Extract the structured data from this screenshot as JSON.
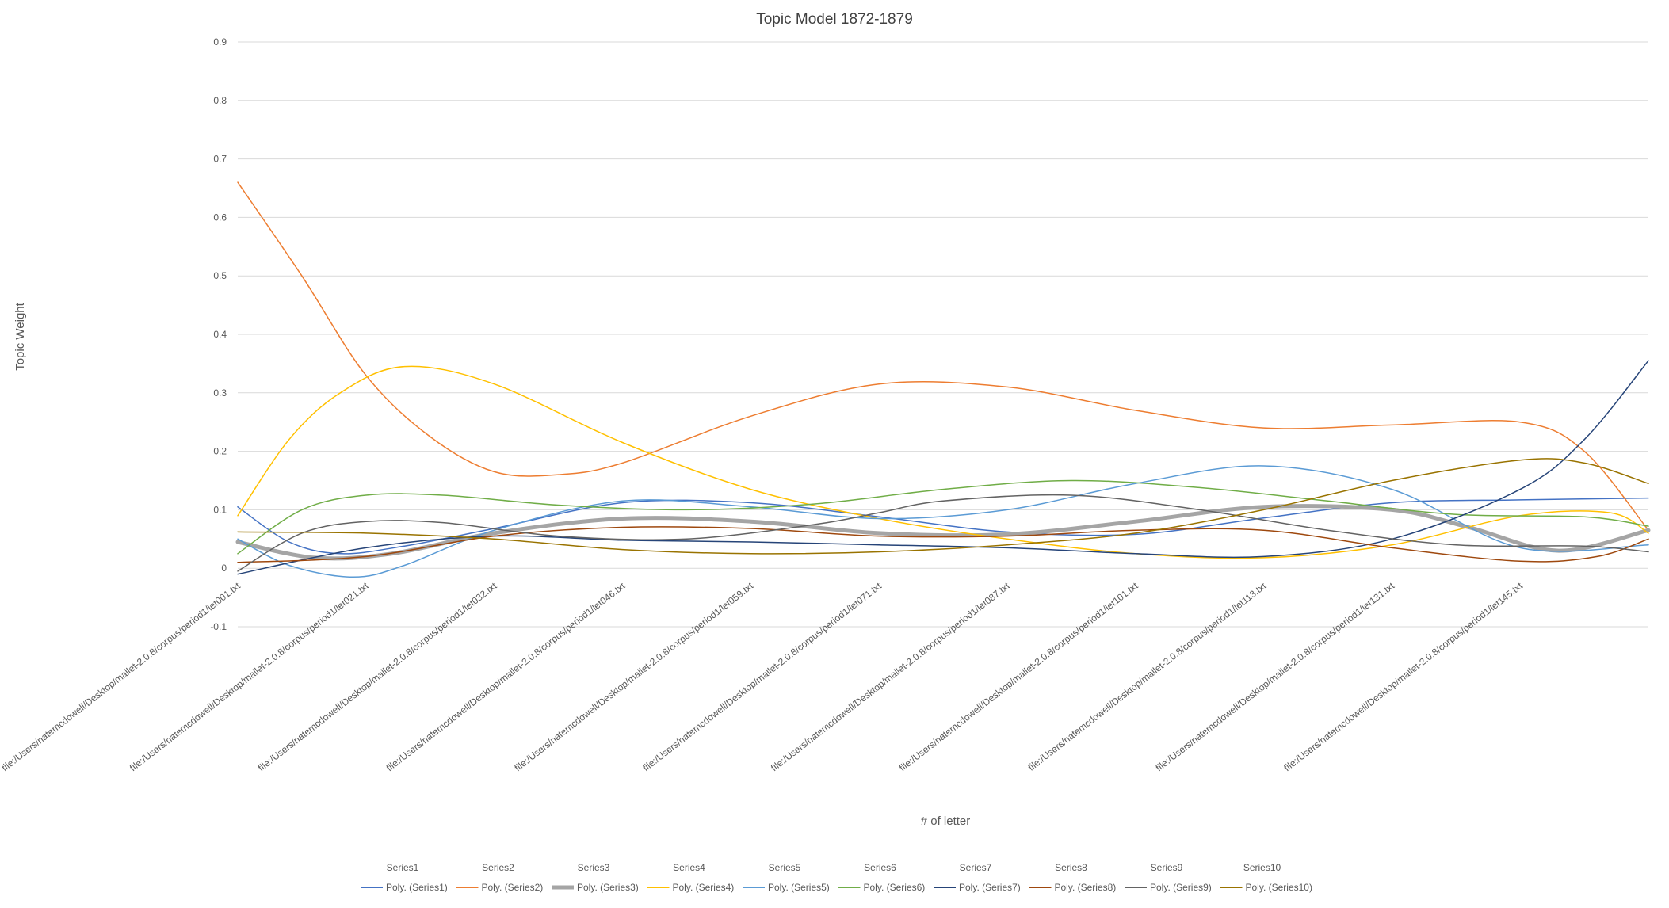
{
  "chart_data": {
    "type": "line",
    "title": "Topic Model 1872-1879",
    "xlabel": "# of letter",
    "ylabel": "Topic Weight",
    "ylim": [
      -0.1,
      0.9
    ],
    "yticks": [
      "0.9",
      "0.8",
      "0.7",
      "0.6",
      "0.5",
      "0.4",
      "0.3",
      "0.2",
      "0.1",
      "0",
      "-0.1"
    ],
    "grid": true,
    "legend_position": "bottom",
    "x_labels": [
      "file:/Users/natemcdowell/Desktop/mallet-2.0.8/corpus/period1/let001.txt",
      "file:/Users/natemcdowell/Desktop/mallet-2.0.8/corpus/period1/let021.txt",
      "file:/Users/natemcdowell/Desktop/mallet-2.0.8/corpus/period1/let032.txt",
      "file:/Users/natemcdowell/Desktop/mallet-2.0.8/corpus/period1/let046.txt",
      "file:/Users/natemcdowell/Desktop/mallet-2.0.8/corpus/period1/let059.txt",
      "file:/Users/natemcdowell/Desktop/mallet-2.0.8/corpus/period1/let071.txt",
      "file:/Users/natemcdowell/Desktop/mallet-2.0.8/corpus/period1/let087.txt",
      "file:/Users/natemcdowell/Desktop/mallet-2.0.8/corpus/period1/let101.txt",
      "file:/Users/natemcdowell/Desktop/mallet-2.0.8/corpus/period1/let113.txt",
      "file:/Users/natemcdowell/Desktop/mallet-2.0.8/corpus/period1/let131.txt",
      "file:/Users/natemcdowell/Desktop/mallet-2.0.8/corpus/period1/let145.txt"
    ],
    "x_range": [
      0,
      11
    ],
    "legend_series": [
      "Series1",
      "Series2",
      "Series3",
      "Series4",
      "Series5",
      "Series6",
      "Series7",
      "Series8",
      "Series9",
      "Series10"
    ],
    "trendlines": [
      {
        "name": "Poly. (Series1)",
        "color": "#4472C4",
        "width": 1.5,
        "x": [
          0,
          0.4,
          0.8,
          1.3,
          2,
          3,
          4,
          5,
          6,
          7,
          8,
          9,
          10,
          11
        ],
        "y": [
          0.105,
          0.045,
          0.025,
          0.038,
          0.068,
          0.112,
          0.112,
          0.088,
          0.062,
          0.058,
          0.086,
          0.112,
          0.117,
          0.12
        ]
      },
      {
        "name": "Poly. (Series2)",
        "color": "#ED7D31",
        "width": 1.5,
        "x": [
          0,
          0.5,
          1,
          1.5,
          2,
          2.5,
          3,
          4,
          5,
          6,
          7,
          8,
          9,
          10,
          10.5,
          11
        ],
        "y": [
          0.66,
          0.5,
          0.33,
          0.225,
          0.165,
          0.16,
          0.18,
          0.26,
          0.315,
          0.31,
          0.27,
          0.24,
          0.245,
          0.25,
          0.2,
          0.065
        ]
      },
      {
        "name": "Poly. (Series3)",
        "color": "#A5A5A5",
        "width": 5,
        "x": [
          0,
          0.6,
          1.2,
          2,
          3,
          4,
          5,
          6,
          7,
          8,
          9,
          9.6,
          10.3,
          11
        ],
        "y": [
          0.045,
          0.018,
          0.025,
          0.06,
          0.085,
          0.08,
          0.06,
          0.058,
          0.08,
          0.105,
          0.1,
          0.07,
          0.03,
          0.065
        ]
      },
      {
        "name": "Poly. (Series4)",
        "color": "#FFC000",
        "width": 1.5,
        "x": [
          0,
          0.4,
          0.8,
          1.3,
          2,
          3,
          4,
          5,
          6,
          7,
          8,
          9,
          10,
          10.7,
          11
        ],
        "y": [
          0.09,
          0.22,
          0.3,
          0.345,
          0.315,
          0.215,
          0.135,
          0.085,
          0.05,
          0.025,
          0.018,
          0.04,
          0.09,
          0.095,
          0.06
        ]
      },
      {
        "name": "Poly. (Series5)",
        "color": "#5B9BD5",
        "width": 1.5,
        "x": [
          0,
          0.4,
          0.9,
          1.3,
          2,
          3,
          4,
          5,
          6,
          7,
          8,
          9,
          10,
          11
        ],
        "y": [
          0.05,
          0.005,
          -0.015,
          0.005,
          0.065,
          0.115,
          0.105,
          0.085,
          0.1,
          0.145,
          0.175,
          0.135,
          0.035,
          0.04
        ]
      },
      {
        "name": "Poly. (Series6)",
        "color": "#70AD47",
        "width": 1.5,
        "x": [
          0,
          0.5,
          1,
          1.6,
          2.5,
          3.5,
          4.5,
          5.5,
          6.5,
          7.5,
          8.5,
          9.5,
          10.5,
          11
        ],
        "y": [
          0.025,
          0.1,
          0.125,
          0.125,
          0.108,
          0.1,
          0.11,
          0.135,
          0.15,
          0.138,
          0.115,
          0.092,
          0.088,
          0.072
        ]
      },
      {
        "name": "Poly. (Series7)",
        "color": "#264478",
        "width": 1.5,
        "x": [
          0,
          1,
          2,
          3,
          4,
          5,
          6,
          7,
          8,
          9,
          10,
          10.5,
          11
        ],
        "y": [
          -0.01,
          0.035,
          0.055,
          0.048,
          0.045,
          0.04,
          0.035,
          0.025,
          0.02,
          0.05,
          0.135,
          0.22,
          0.355
        ]
      },
      {
        "name": "Poly. (Series8)",
        "color": "#9E480E",
        "width": 1.5,
        "x": [
          0,
          1,
          2,
          3,
          4,
          5,
          6,
          7,
          8,
          9,
          10,
          10.6,
          11
        ],
        "y": [
          0.01,
          0.02,
          0.055,
          0.07,
          0.068,
          0.055,
          0.055,
          0.065,
          0.065,
          0.035,
          0.012,
          0.02,
          0.05
        ]
      },
      {
        "name": "Poly. (Series9)",
        "color": "#636363",
        "width": 1.5,
        "x": [
          0,
          0.5,
          1,
          1.6,
          2.5,
          3.5,
          4.5,
          5,
          5.5,
          6.5,
          7.5,
          8.5,
          9.5,
          10.5,
          11
        ],
        "y": [
          -0.005,
          0.06,
          0.08,
          0.078,
          0.055,
          0.05,
          0.075,
          0.095,
          0.115,
          0.125,
          0.1,
          0.065,
          0.04,
          0.038,
          0.028
        ]
      },
      {
        "name": "Poly. (Series10)",
        "color": "#997300",
        "width": 1.5,
        "x": [
          0,
          1,
          2,
          3,
          4,
          5,
          6,
          7,
          8,
          9,
          10,
          10.5,
          11
        ],
        "y": [
          0.062,
          0.06,
          0.05,
          0.032,
          0.025,
          0.028,
          0.04,
          0.06,
          0.1,
          0.15,
          0.185,
          0.18,
          0.145
        ]
      }
    ]
  }
}
